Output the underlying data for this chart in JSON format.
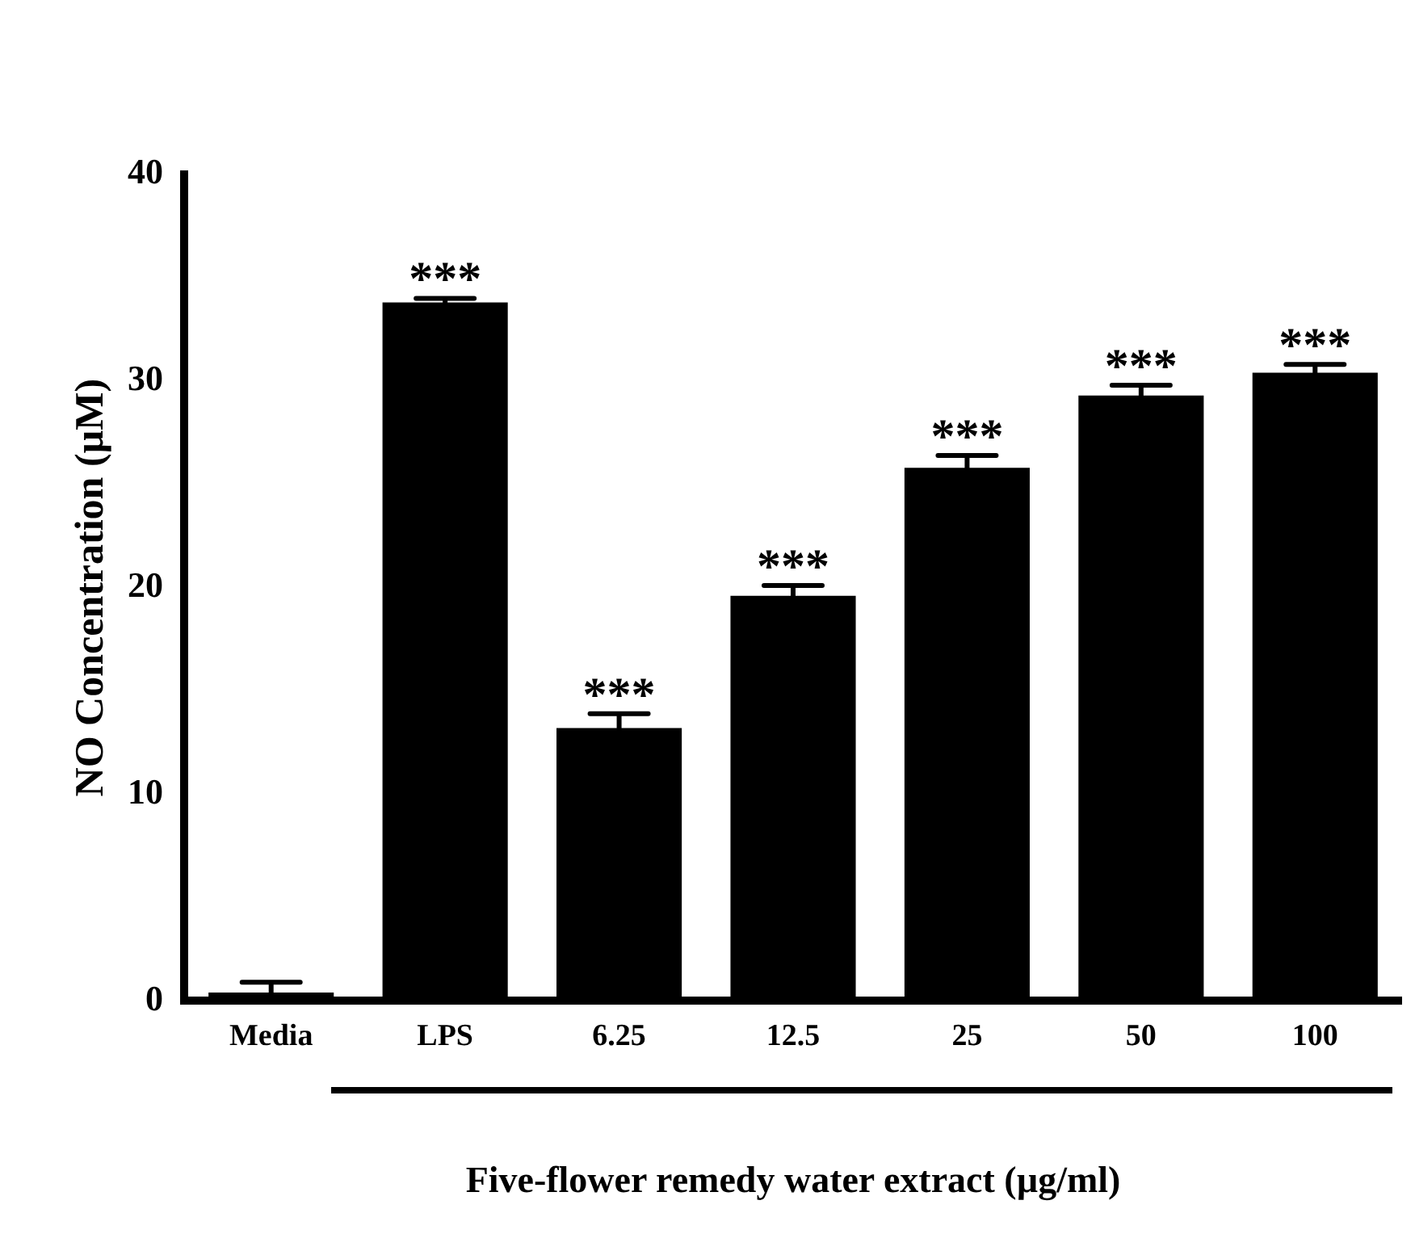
{
  "chart_data": {
    "type": "bar",
    "xlabel": "Five-flower remedy water extract (µg/ml)",
    "ylabel": "NO Concentration (µM)",
    "categories": [
      "Media",
      "LPS",
      "6.25",
      "12.5",
      "25",
      "50",
      "100"
    ],
    "values": [
      0.4,
      33.8,
      13.2,
      19.6,
      25.8,
      29.3,
      30.4
    ],
    "errors": [
      0.5,
      0.2,
      0.7,
      0.5,
      0.6,
      0.5,
      0.4
    ],
    "color": "#000000",
    "ylim": [
      0,
      40
    ],
    "yticks": [
      0,
      10,
      20,
      30,
      40
    ],
    "grid": false,
    "legend": false,
    "annotations": [
      {
        "text": "***",
        "x": "LPS",
        "y": 34.0
      },
      {
        "text": "***",
        "x": "6.25",
        "y": 13.9
      },
      {
        "text": "***",
        "x": "12.5",
        "y": 20.1
      },
      {
        "text": "***",
        "x": "25",
        "y": 26.4
      },
      {
        "text": "***",
        "x": "50",
        "y": 29.8
      },
      {
        "text": "***",
        "x": "100",
        "y": 30.8
      }
    ]
  }
}
